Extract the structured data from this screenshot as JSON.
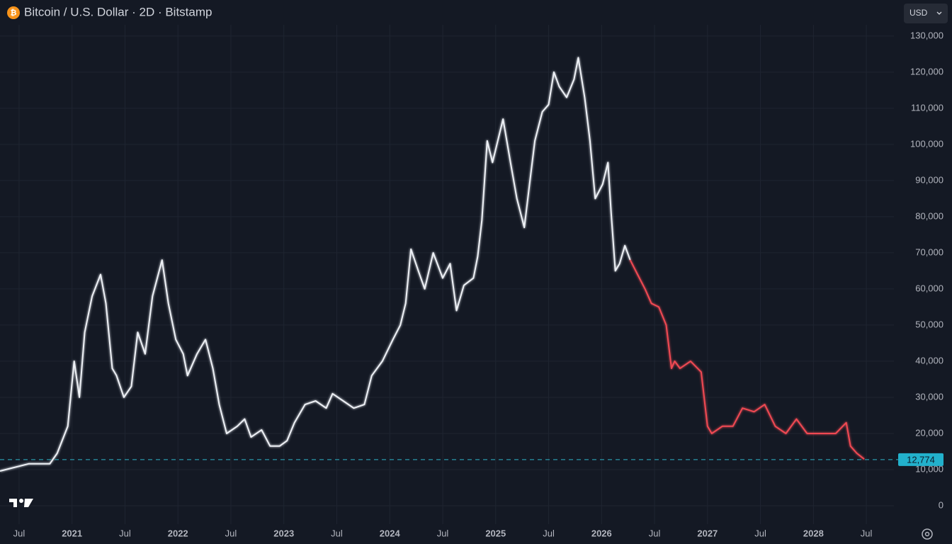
{
  "chart_data": {
    "type": "line",
    "title": "Bitcoin / U.S. Dollar · 2D · Bitstamp",
    "currency": "USD",
    "xlim": [
      2020.32,
      2028.76
    ],
    "ylim": [
      -5100,
      133100
    ],
    "xticks": [
      {
        "value": 2020.5,
        "label": "Jul"
      },
      {
        "value": 2021,
        "label": "2021"
      },
      {
        "value": 2021.5,
        "label": "Jul"
      },
      {
        "value": 2022,
        "label": "2022"
      },
      {
        "value": 2022.5,
        "label": "Jul"
      },
      {
        "value": 2023,
        "label": "2023"
      },
      {
        "value": 2023.5,
        "label": "Jul"
      },
      {
        "value": 2024,
        "label": "2024"
      },
      {
        "value": 2024.5,
        "label": "Jul"
      },
      {
        "value": 2025,
        "label": "2025"
      },
      {
        "value": 2025.5,
        "label": "Jul"
      },
      {
        "value": 2026,
        "label": "2026"
      },
      {
        "value": 2026.5,
        "label": "Jul"
      },
      {
        "value": 2027,
        "label": "2027"
      },
      {
        "value": 2027.5,
        "label": "Jul"
      },
      {
        "value": 2028,
        "label": "2028"
      },
      {
        "value": 2028.5,
        "label": "Jul"
      }
    ],
    "yticks": [
      0,
      {
        "value": 10000,
        "label": "10,000"
      },
      {
        "value": 20000,
        "label": "20,000"
      },
      {
        "value": 30000,
        "label": "30,000"
      },
      {
        "value": 40000,
        "label": "40,000"
      },
      {
        "value": 50000,
        "label": "50,000"
      },
      {
        "value": 60000,
        "label": "60,000"
      },
      {
        "value": 70000,
        "label": "70,000"
      },
      {
        "value": 80000,
        "label": "80,000"
      },
      {
        "value": 90000,
        "label": "90,000"
      },
      {
        "value": 100000,
        "label": "100,000"
      },
      {
        "value": 110000,
        "label": "110,000"
      },
      {
        "value": 120000,
        "label": "120,000"
      },
      {
        "value": 130000,
        "label": "130,000"
      }
    ],
    "grid": true,
    "last_price": {
      "value": 12774,
      "label": "12,774"
    },
    "series": [
      {
        "color": "#eef1f6",
        "x": [
          2020.32,
          2020.59,
          2020.79,
          2020.86,
          2020.96,
          2021.02,
          2021.07,
          2021.12,
          2021.19,
          2021.27,
          2021.32,
          2021.38,
          2021.42,
          2021.49,
          2021.56,
          2021.62,
          2021.69,
          2021.76,
          2021.85,
          2021.91,
          2021.98,
          2022.05,
          2022.09,
          2022.18,
          2022.26,
          2022.33,
          2022.39,
          2022.46,
          2022.56,
          2022.63,
          2022.69,
          2022.79,
          2022.87,
          2022.96,
          2023.03,
          2023.1,
          2023.2,
          2023.3,
          2023.4,
          2023.46,
          2023.56,
          2023.66,
          2023.76,
          2023.83,
          2023.93,
          2024.03,
          2024.1,
          2024.15,
          2024.2,
          2024.27,
          2024.33,
          2024.41,
          2024.5,
          2024.57,
          2024.63,
          2024.7,
          2024.79,
          2024.83,
          2024.87,
          2024.92,
          2024.97,
          2025.07,
          2025.14,
          2025.2,
          2025.27,
          2025.32,
          2025.37,
          2025.44,
          2025.5,
          2025.55,
          2025.6,
          2025.67,
          2025.74,
          2025.78,
          2025.84,
          2025.89,
          2025.94,
          2026.01,
          2026.06,
          2026.09,
          2026.13,
          2026.17,
          2026.22,
          2026.27
        ],
        "values": [
          9600,
          11600,
          11600,
          14500,
          22000,
          40000,
          30000,
          48000,
          58000,
          64000,
          56000,
          38000,
          36000,
          30000,
          33000,
          48000,
          42000,
          58000,
          68000,
          56000,
          46000,
          42000,
          36000,
          42000,
          46000,
          38000,
          28000,
          20000,
          22000,
          24000,
          19000,
          21000,
          16500,
          16500,
          18000,
          23000,
          28000,
          29000,
          27000,
          31000,
          29000,
          27000,
          28000,
          36000,
          40000,
          46000,
          50000,
          56000,
          71000,
          65000,
          60000,
          70000,
          63000,
          67000,
          54000,
          61000,
          63000,
          69000,
          79000,
          101000,
          95000,
          107000,
          95000,
          85000,
          77000,
          89000,
          101000,
          109000,
          111000,
          120000,
          116000,
          113000,
          118000,
          124000,
          113000,
          101000,
          85000,
          89000,
          95000,
          81000,
          65000,
          67000,
          72000,
          68000
        ]
      },
      {
        "color": "#f04a52",
        "x": [
          2026.27,
          2026.34,
          2026.41,
          2026.47,
          2026.54,
          2026.61,
          2026.66,
          2026.69,
          2026.74,
          2026.84,
          2026.94,
          2027.0,
          2027.04,
          2027.14,
          2027.24,
          2027.33,
          2027.44,
          2027.54,
          2027.64,
          2027.74,
          2027.84,
          2027.94,
          2028.08,
          2028.21,
          2028.31,
          2028.35,
          2028.41,
          2028.48
        ],
        "values": [
          68000,
          64000,
          60000,
          56000,
          55000,
          50000,
          38000,
          40000,
          38000,
          40000,
          37000,
          22000,
          20000,
          22000,
          22000,
          27000,
          26000,
          28000,
          22000,
          20000,
          24000,
          20000,
          20000,
          20000,
          23000,
          16500,
          14500,
          12900
        ]
      }
    ]
  }
}
